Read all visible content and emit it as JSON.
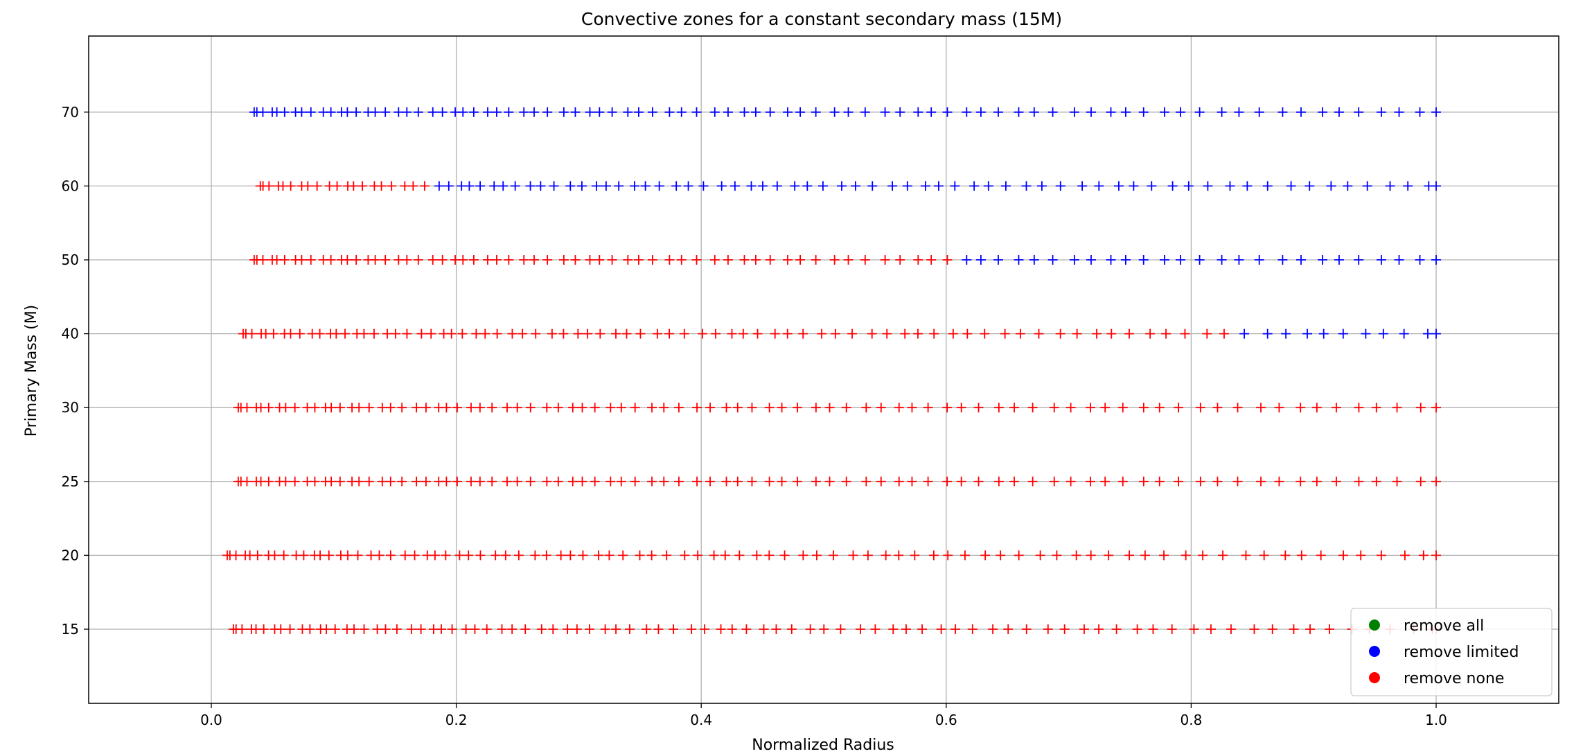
{
  "chart_data": {
    "type": "scatter",
    "title": "Convective zones for a constant secondary mass (15M)",
    "xlabel": "Normalized Radius",
    "ylabel": "Primary Mass (M)",
    "xlim": [
      -0.1,
      1.1
    ],
    "ylim": [
      5,
      80
    ],
    "xticks": [
      "0.0",
      "0.2",
      "0.4",
      "0.6",
      "0.8",
      "1.0"
    ],
    "yticks": [
      "15",
      "20",
      "25",
      "30",
      "40",
      "50",
      "60",
      "70"
    ],
    "grid": true,
    "legend_position": "lower-right",
    "marker": "+",
    "legend": [
      {
        "label": "remove all",
        "color": "#008000"
      },
      {
        "label": "remove limited",
        "color": "#0000ff"
      },
      {
        "label": "remove none",
        "color": "#ff0000"
      }
    ],
    "rows": [
      {
        "mass": 15,
        "row_index": 0,
        "start": 0.018,
        "end": 1.0,
        "segments": [
          {
            "series": "remove none",
            "from": 0.018,
            "to": 1.0
          }
        ]
      },
      {
        "mass": 20,
        "row_index": 1,
        "start": 0.013,
        "end": 1.0,
        "segments": [
          {
            "series": "remove none",
            "from": 0.013,
            "to": 1.0
          }
        ]
      },
      {
        "mass": 25,
        "row_index": 2,
        "start": 0.022,
        "end": 1.0,
        "segments": [
          {
            "series": "remove none",
            "from": 0.022,
            "to": 1.0
          }
        ]
      },
      {
        "mass": 30,
        "row_index": 3,
        "start": 0.022,
        "end": 1.0,
        "segments": [
          {
            "series": "remove none",
            "from": 0.022,
            "to": 1.0
          }
        ]
      },
      {
        "mass": 40,
        "row_index": 4,
        "start": 0.026,
        "end": 1.0,
        "segments": [
          {
            "series": "remove none",
            "from": 0.026,
            "to": 0.835
          },
          {
            "series": "remove limited",
            "from": 0.835,
            "to": 1.0
          }
        ]
      },
      {
        "mass": 50,
        "row_index": 5,
        "start": 0.035,
        "end": 1.0,
        "segments": [
          {
            "series": "remove none",
            "from": 0.035,
            "to": 0.615
          },
          {
            "series": "remove limited",
            "from": 0.615,
            "to": 1.0
          }
        ]
      },
      {
        "mass": 60,
        "row_index": 6,
        "start": 0.04,
        "end": 1.0,
        "segments": [
          {
            "series": "remove none",
            "from": 0.04,
            "to": 0.18
          },
          {
            "series": "remove limited",
            "from": 0.18,
            "to": 1.0
          }
        ]
      },
      {
        "mass": 70,
        "row_index": 7,
        "start": 0.035,
        "end": 1.0,
        "segments": [
          {
            "series": "remove limited",
            "from": 0.035,
            "to": 1.0
          }
        ]
      }
    ],
    "series": [
      {
        "name": "remove all",
        "color": "#008000"
      },
      {
        "name": "remove limited",
        "color": "#0000ff"
      },
      {
        "name": "remove none",
        "color": "#ff0000"
      }
    ]
  }
}
